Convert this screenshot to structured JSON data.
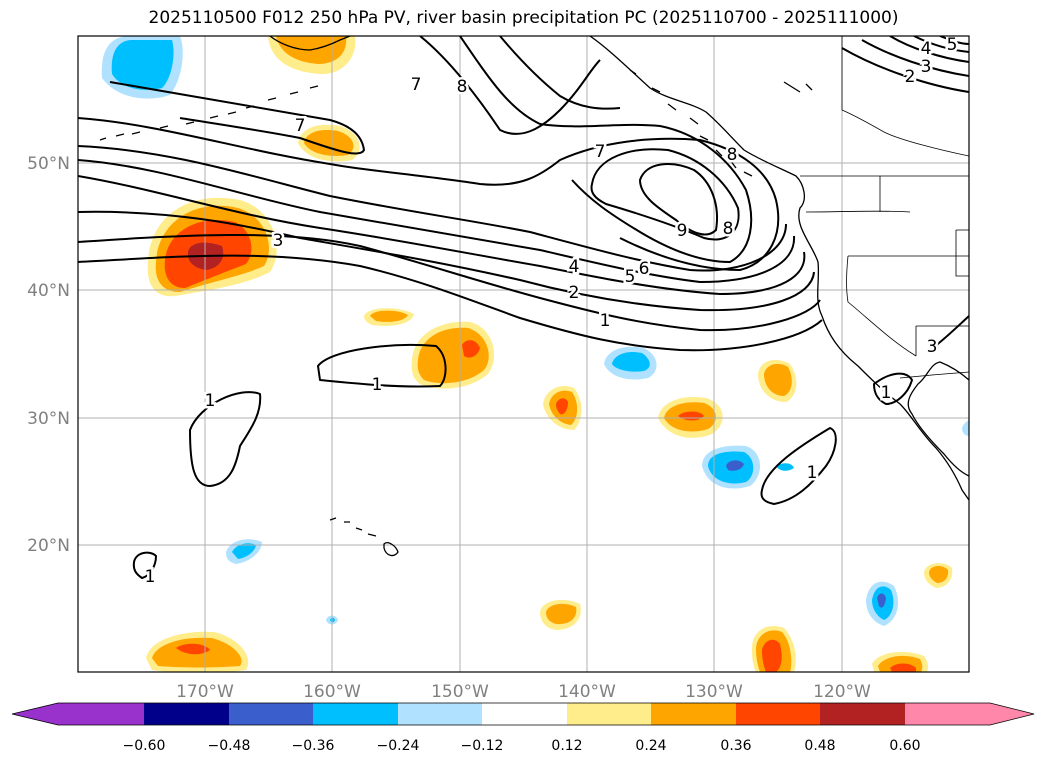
{
  "title": "2025110500 F012 250 hPa PV, river basin precipitation PC (2025110700 - 2025111000)",
  "map": {
    "lon_labels": [
      "170°W",
      "160°W",
      "150°W",
      "140°W",
      "130°W",
      "120°W"
    ],
    "lat_labels": [
      "50°N",
      "40°N",
      "30°N",
      "20°N"
    ],
    "contour_labels": [
      "1",
      "2",
      "3",
      "4",
      "5",
      "6",
      "7",
      "8",
      "9",
      "1",
      "1",
      "1",
      "1",
      "1",
      "7",
      "8",
      "2",
      "3",
      "4",
      "5",
      "3",
      "8",
      "7"
    ]
  },
  "colorbar": {
    "ticks": [
      "−0.60",
      "−0.48",
      "−0.36",
      "−0.24",
      "−0.12",
      "0.12",
      "0.24",
      "0.36",
      "0.48",
      "0.60"
    ],
    "colors": [
      "#9932cc",
      "#00008b",
      "#3a5fcd",
      "#00bfff",
      "#b0e2ff",
      "#ffffff",
      "#ffec8b",
      "#ffa500",
      "#ff4500",
      "#b22222",
      "#ff88aa"
    ]
  },
  "colors": {
    "grid": "#b0b0b0",
    "tick_text": "#808080",
    "contour": "#000000"
  }
}
